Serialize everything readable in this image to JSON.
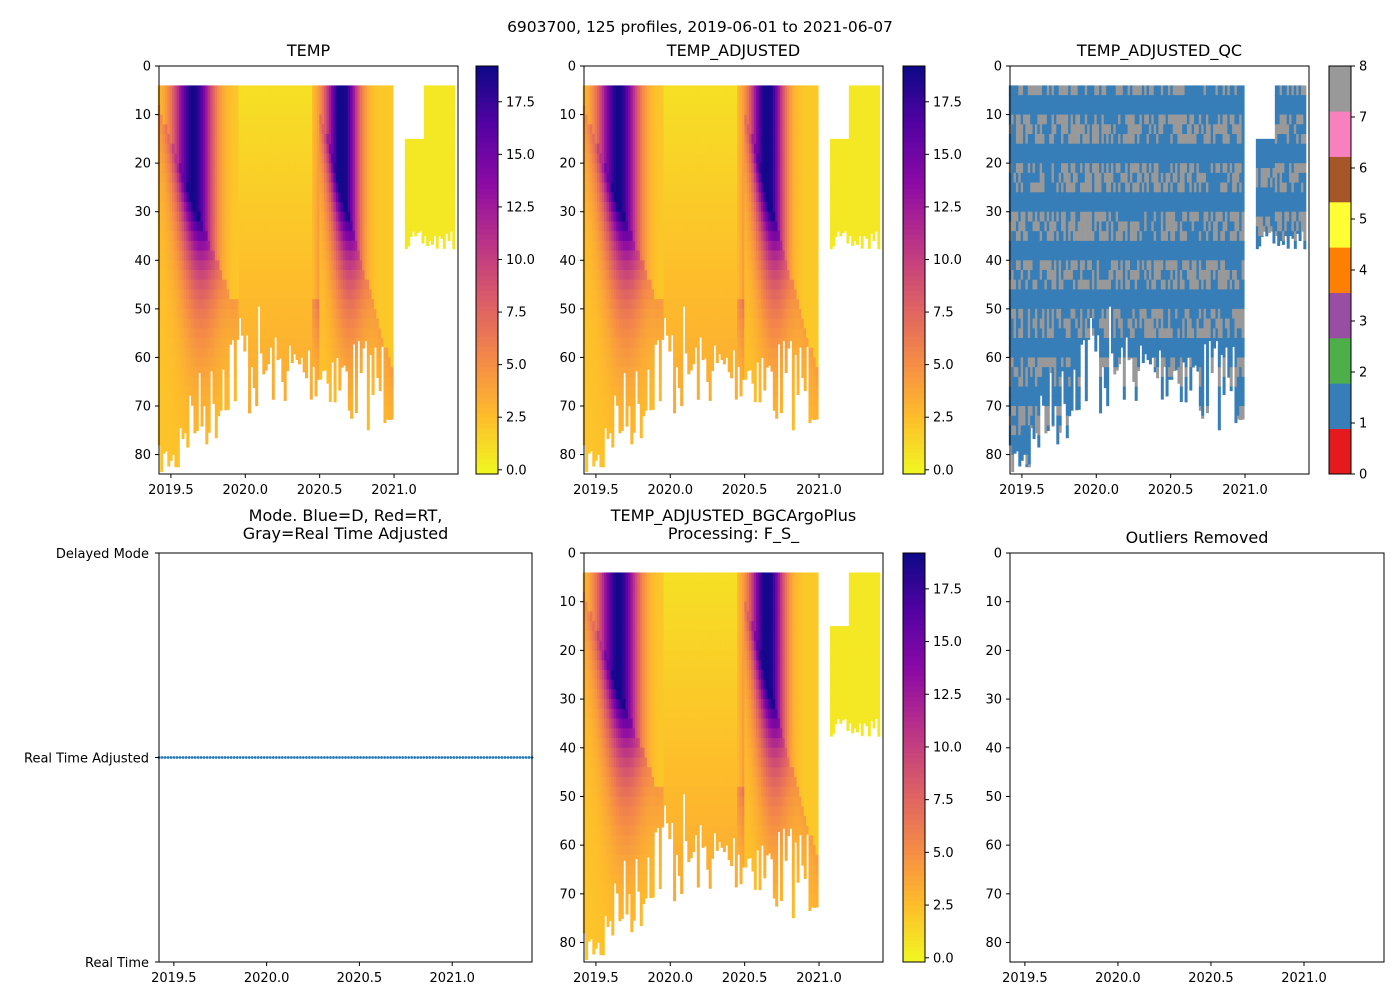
{
  "chart_data": {
    "type": "heatmap",
    "suptitle": "6903700, 125 profiles, 2019-06-01 to 2021-06-07",
    "panels": [
      {
        "id": "temp",
        "title": "TEMP",
        "xlim": [
          2019.42,
          2021.43
        ],
        "ylim": [
          84,
          0
        ],
        "xticks": [
          "2019.5",
          "2020.0",
          "2020.5",
          "2021.0"
        ],
        "yticks": [
          "0",
          "10",
          "20",
          "30",
          "40",
          "50",
          "60",
          "70",
          "80"
        ],
        "colormap": "plasma_r",
        "colorbar": {
          "range": [
            -0.2,
            19.2
          ],
          "ticks": [
            "0.0",
            "2.5",
            "5.0",
            "7.5",
            "10.0",
            "12.5",
            "15.0",
            "17.5"
          ]
        },
        "data_summary": "Temperature (deg C) vs depth (m) and time: warm (up to ~19) near surface in summers 2019.6 and 2020.6, cold (~0-3) below and in winter"
      },
      {
        "id": "temp_adjusted",
        "title": "TEMP_ADJUSTED",
        "xlim": [
          2019.42,
          2021.43
        ],
        "ylim": [
          84,
          0
        ],
        "xticks": [
          "2019.5",
          "2020.0",
          "2020.5",
          "2021.0"
        ],
        "yticks": [
          "0",
          "10",
          "20",
          "30",
          "40",
          "50",
          "60",
          "70",
          "80"
        ],
        "colormap": "plasma_r",
        "colorbar": {
          "range": [
            -0.2,
            19.2
          ],
          "ticks": [
            "0.0",
            "2.5",
            "5.0",
            "7.5",
            "10.0",
            "12.5",
            "15.0",
            "17.5"
          ]
        }
      },
      {
        "id": "temp_adjusted_qc",
        "title": "TEMP_ADJUSTED_QC",
        "xlim": [
          2019.42,
          2021.43
        ],
        "ylim": [
          84,
          0
        ],
        "xticks": [
          "2019.5",
          "2020.0",
          "2020.5",
          "2021.0"
        ],
        "yticks": [
          "0",
          "10",
          "20",
          "30",
          "40",
          "50",
          "60",
          "70",
          "80"
        ],
        "colorbar": {
          "ticks": [
            "0",
            "1",
            "2",
            "3",
            "4",
            "5",
            "6",
            "7",
            "8"
          ],
          "classes": [
            "#e41a1c",
            "#377eb8",
            "#4daf4a",
            "#984ea3",
            "#ff7f00",
            "#ffff33",
            "#a65628",
            "#f781bf",
            "#999999"
          ]
        },
        "data_summary": "Mostly QC flag 1 (blue) with flag 8 (gray) bands at regular depths"
      },
      {
        "id": "mode",
        "title": [
          "Mode. Blue=D, Red=RT,",
          "Gray=Real Time Adjusted"
        ],
        "type": "scatter",
        "xlim": [
          2019.42,
          2021.43
        ],
        "xticks": [
          "2019.5",
          "2020.0",
          "2020.5",
          "2021.0"
        ],
        "yticks": [
          "Delayed Mode",
          "Real Time Adjusted",
          "Real Time"
        ],
        "series": [
          {
            "name": "mode",
            "level": "Real Time Adjusted",
            "count": 125,
            "color": "#1f77b4"
          }
        ]
      },
      {
        "id": "bgc",
        "title": [
          "TEMP_ADJUSTED_BGCArgoPlus",
          "Processing: F_S_"
        ],
        "xlim": [
          2019.42,
          2021.43
        ],
        "ylim": [
          84,
          0
        ],
        "xticks": [
          "2019.5",
          "2020.0",
          "2020.5",
          "2021.0"
        ],
        "yticks": [
          "0",
          "10",
          "20",
          "30",
          "40",
          "50",
          "60",
          "70",
          "80"
        ],
        "colormap": "plasma_r",
        "colorbar": {
          "range": [
            -0.2,
            19.2
          ],
          "ticks": [
            "0.0",
            "2.5",
            "5.0",
            "7.5",
            "10.0",
            "12.5",
            "15.0",
            "17.5"
          ]
        }
      },
      {
        "id": "outliers",
        "title": "Outliers Removed",
        "xlim": [
          2019.42,
          2021.43
        ],
        "ylim": [
          84,
          0
        ],
        "xticks": [
          "2019.5",
          "2020.0",
          "2020.5",
          "2021.0"
        ],
        "yticks": [
          "0",
          "10",
          "20",
          "30",
          "40",
          "50",
          "60",
          "70",
          "80"
        ],
        "values": []
      }
    ]
  }
}
